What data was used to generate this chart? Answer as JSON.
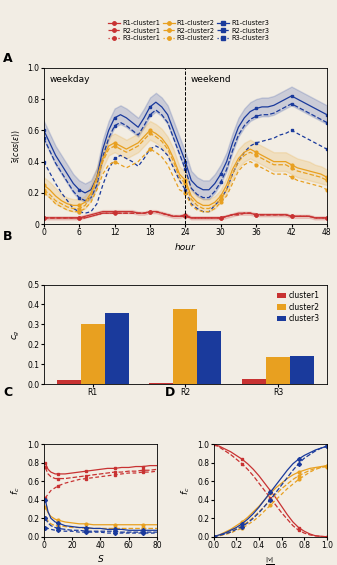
{
  "panel_A": {
    "hours": [
      0,
      1,
      2,
      3,
      4,
      5,
      6,
      7,
      8,
      9,
      10,
      11,
      12,
      13,
      14,
      15,
      16,
      17,
      18,
      19,
      20,
      21,
      22,
      23,
      24,
      25,
      26,
      27,
      28,
      29,
      30,
      31,
      32,
      33,
      34,
      35,
      36,
      37,
      38,
      39,
      40,
      41,
      42,
      43,
      44,
      45,
      46,
      47,
      48
    ],
    "R1_c1": [
      0.04,
      0.04,
      0.04,
      0.04,
      0.04,
      0.04,
      0.04,
      0.05,
      0.06,
      0.07,
      0.08,
      0.08,
      0.08,
      0.08,
      0.08,
      0.08,
      0.07,
      0.07,
      0.08,
      0.08,
      0.07,
      0.06,
      0.05,
      0.05,
      0.06,
      0.04,
      0.04,
      0.04,
      0.04,
      0.04,
      0.04,
      0.05,
      0.06,
      0.07,
      0.07,
      0.07,
      0.06,
      0.06,
      0.06,
      0.06,
      0.06,
      0.06,
      0.05,
      0.05,
      0.05,
      0.05,
      0.04,
      0.04,
      0.04
    ],
    "R1_c1_upper": [
      0.05,
      0.05,
      0.05,
      0.05,
      0.05,
      0.05,
      0.05,
      0.06,
      0.07,
      0.08,
      0.09,
      0.09,
      0.09,
      0.09,
      0.09,
      0.09,
      0.08,
      0.08,
      0.09,
      0.09,
      0.08,
      0.07,
      0.06,
      0.06,
      0.07,
      0.05,
      0.05,
      0.05,
      0.05,
      0.05,
      0.05,
      0.06,
      0.07,
      0.08,
      0.08,
      0.08,
      0.07,
      0.07,
      0.07,
      0.07,
      0.07,
      0.07,
      0.06,
      0.06,
      0.06,
      0.06,
      0.05,
      0.05,
      0.05
    ],
    "R1_c1_lower": [
      0.03,
      0.03,
      0.03,
      0.03,
      0.03,
      0.03,
      0.03,
      0.04,
      0.05,
      0.06,
      0.07,
      0.07,
      0.07,
      0.07,
      0.07,
      0.07,
      0.06,
      0.06,
      0.07,
      0.07,
      0.06,
      0.05,
      0.04,
      0.04,
      0.05,
      0.03,
      0.03,
      0.03,
      0.03,
      0.03,
      0.03,
      0.04,
      0.05,
      0.06,
      0.06,
      0.06,
      0.05,
      0.05,
      0.05,
      0.05,
      0.05,
      0.05,
      0.04,
      0.04,
      0.04,
      0.04,
      0.03,
      0.03,
      0.03
    ],
    "R1_c2": [
      0.25,
      0.22,
      0.18,
      0.15,
      0.13,
      0.12,
      0.12,
      0.14,
      0.2,
      0.3,
      0.42,
      0.5,
      0.52,
      0.5,
      0.48,
      0.5,
      0.52,
      0.56,
      0.6,
      0.58,
      0.55,
      0.5,
      0.42,
      0.32,
      0.28,
      0.18,
      0.14,
      0.12,
      0.12,
      0.14,
      0.18,
      0.25,
      0.35,
      0.42,
      0.46,
      0.48,
      0.46,
      0.44,
      0.42,
      0.4,
      0.4,
      0.4,
      0.38,
      0.36,
      0.35,
      0.34,
      0.33,
      0.32,
      0.3
    ],
    "R1_c2_upper": [
      0.3,
      0.27,
      0.23,
      0.19,
      0.17,
      0.16,
      0.16,
      0.18,
      0.25,
      0.36,
      0.48,
      0.56,
      0.58,
      0.56,
      0.54,
      0.56,
      0.58,
      0.62,
      0.66,
      0.64,
      0.61,
      0.56,
      0.48,
      0.37,
      0.33,
      0.22,
      0.18,
      0.16,
      0.16,
      0.18,
      0.22,
      0.3,
      0.41,
      0.48,
      0.52,
      0.54,
      0.52,
      0.5,
      0.48,
      0.46,
      0.46,
      0.46,
      0.44,
      0.42,
      0.41,
      0.4,
      0.38,
      0.37,
      0.35
    ],
    "R1_c2_lower": [
      0.2,
      0.17,
      0.13,
      0.11,
      0.09,
      0.08,
      0.08,
      0.1,
      0.15,
      0.24,
      0.36,
      0.44,
      0.46,
      0.44,
      0.42,
      0.44,
      0.46,
      0.5,
      0.54,
      0.52,
      0.49,
      0.44,
      0.36,
      0.27,
      0.23,
      0.14,
      0.1,
      0.08,
      0.08,
      0.1,
      0.14,
      0.2,
      0.29,
      0.36,
      0.4,
      0.42,
      0.4,
      0.38,
      0.36,
      0.34,
      0.34,
      0.34,
      0.32,
      0.3,
      0.29,
      0.28,
      0.27,
      0.26,
      0.25
    ],
    "R1_c3": [
      0.6,
      0.52,
      0.44,
      0.38,
      0.32,
      0.26,
      0.22,
      0.2,
      0.22,
      0.3,
      0.48,
      0.6,
      0.68,
      0.7,
      0.68,
      0.65,
      0.62,
      0.68,
      0.75,
      0.78,
      0.75,
      0.7,
      0.6,
      0.5,
      0.4,
      0.28,
      0.24,
      0.22,
      0.22,
      0.26,
      0.32,
      0.4,
      0.52,
      0.62,
      0.68,
      0.72,
      0.74,
      0.75,
      0.75,
      0.76,
      0.78,
      0.8,
      0.82,
      0.8,
      0.78,
      0.76,
      0.74,
      0.72,
      0.7
    ],
    "R1_c3_upper": [
      0.66,
      0.58,
      0.5,
      0.44,
      0.38,
      0.32,
      0.28,
      0.26,
      0.28,
      0.36,
      0.54,
      0.66,
      0.74,
      0.76,
      0.74,
      0.71,
      0.68,
      0.74,
      0.81,
      0.84,
      0.81,
      0.76,
      0.66,
      0.56,
      0.46,
      0.34,
      0.3,
      0.28,
      0.28,
      0.32,
      0.38,
      0.46,
      0.58,
      0.68,
      0.74,
      0.78,
      0.8,
      0.81,
      0.81,
      0.82,
      0.84,
      0.86,
      0.88,
      0.86,
      0.84,
      0.82,
      0.8,
      0.78,
      0.76
    ],
    "R1_c3_lower": [
      0.54,
      0.46,
      0.38,
      0.32,
      0.26,
      0.2,
      0.16,
      0.14,
      0.16,
      0.24,
      0.42,
      0.54,
      0.62,
      0.64,
      0.62,
      0.59,
      0.56,
      0.62,
      0.69,
      0.72,
      0.69,
      0.64,
      0.54,
      0.44,
      0.34,
      0.22,
      0.18,
      0.16,
      0.16,
      0.2,
      0.26,
      0.34,
      0.46,
      0.56,
      0.62,
      0.66,
      0.68,
      0.69,
      0.69,
      0.7,
      0.72,
      0.74,
      0.76,
      0.74,
      0.72,
      0.7,
      0.68,
      0.66,
      0.64
    ],
    "R2_c1": [
      0.04,
      0.04,
      0.04,
      0.04,
      0.04,
      0.04,
      0.04,
      0.04,
      0.05,
      0.06,
      0.07,
      0.07,
      0.07,
      0.07,
      0.07,
      0.07,
      0.07,
      0.07,
      0.08,
      0.08,
      0.07,
      0.06,
      0.05,
      0.05,
      0.05,
      0.04,
      0.04,
      0.04,
      0.04,
      0.04,
      0.04,
      0.05,
      0.06,
      0.06,
      0.07,
      0.07,
      0.06,
      0.06,
      0.06,
      0.06,
      0.06,
      0.06,
      0.05,
      0.05,
      0.05,
      0.05,
      0.04,
      0.04,
      0.04
    ],
    "R2_c2": [
      0.22,
      0.19,
      0.15,
      0.13,
      0.11,
      0.1,
      0.1,
      0.12,
      0.18,
      0.28,
      0.4,
      0.48,
      0.5,
      0.48,
      0.46,
      0.48,
      0.5,
      0.54,
      0.58,
      0.56,
      0.53,
      0.48,
      0.4,
      0.3,
      0.26,
      0.16,
      0.12,
      0.1,
      0.1,
      0.12,
      0.16,
      0.22,
      0.32,
      0.4,
      0.44,
      0.46,
      0.44,
      0.42,
      0.4,
      0.38,
      0.38,
      0.38,
      0.36,
      0.34,
      0.33,
      0.32,
      0.31,
      0.3,
      0.28
    ],
    "R2_c3": [
      0.55,
      0.47,
      0.39,
      0.33,
      0.27,
      0.21,
      0.17,
      0.15,
      0.17,
      0.25,
      0.43,
      0.55,
      0.63,
      0.65,
      0.63,
      0.6,
      0.57,
      0.63,
      0.7,
      0.73,
      0.7,
      0.65,
      0.55,
      0.45,
      0.35,
      0.23,
      0.19,
      0.17,
      0.17,
      0.21,
      0.27,
      0.35,
      0.47,
      0.57,
      0.63,
      0.67,
      0.69,
      0.7,
      0.7,
      0.71,
      0.73,
      0.75,
      0.77,
      0.75,
      0.73,
      0.71,
      0.69,
      0.67,
      0.65
    ],
    "R3_c1": [
      0.04,
      0.04,
      0.04,
      0.04,
      0.04,
      0.04,
      0.04,
      0.04,
      0.05,
      0.06,
      0.07,
      0.07,
      0.07,
      0.07,
      0.07,
      0.07,
      0.07,
      0.07,
      0.08,
      0.08,
      0.07,
      0.06,
      0.05,
      0.05,
      0.05,
      0.04,
      0.04,
      0.04,
      0.04,
      0.04,
      0.04,
      0.05,
      0.06,
      0.06,
      0.07,
      0.07,
      0.06,
      0.06,
      0.06,
      0.06,
      0.06,
      0.06,
      0.05,
      0.05,
      0.05,
      0.05,
      0.04,
      0.04,
      0.04
    ],
    "R3_c2": [
      0.2,
      0.17,
      0.13,
      0.11,
      0.09,
      0.08,
      0.08,
      0.1,
      0.14,
      0.22,
      0.32,
      0.38,
      0.4,
      0.38,
      0.36,
      0.38,
      0.4,
      0.44,
      0.48,
      0.46,
      0.43,
      0.38,
      0.3,
      0.22,
      0.2,
      0.12,
      0.09,
      0.08,
      0.08,
      0.1,
      0.14,
      0.18,
      0.26,
      0.34,
      0.38,
      0.4,
      0.38,
      0.36,
      0.34,
      0.32,
      0.32,
      0.32,
      0.3,
      0.28,
      0.27,
      0.26,
      0.25,
      0.24,
      0.22
    ],
    "R3_c3": [
      0.4,
      0.33,
      0.26,
      0.2,
      0.15,
      0.1,
      0.08,
      0.07,
      0.08,
      0.13,
      0.25,
      0.35,
      0.42,
      0.44,
      0.42,
      0.4,
      0.37,
      0.42,
      0.48,
      0.5,
      0.48,
      0.44,
      0.36,
      0.28,
      0.22,
      0.13,
      0.1,
      0.08,
      0.08,
      0.12,
      0.16,
      0.22,
      0.32,
      0.4,
      0.46,
      0.5,
      0.52,
      0.53,
      0.54,
      0.55,
      0.57,
      0.58,
      0.6,
      0.58,
      0.56,
      0.54,
      0.52,
      0.5,
      0.48
    ],
    "ylabel": "$\\bar{s}(cos(\\epsilon))$",
    "xlabel": "hour"
  },
  "panel_B": {
    "regions": [
      "R1",
      "R2",
      "R3"
    ],
    "cluster1_vals": [
      0.022,
      0.005,
      0.025
    ],
    "cluster2_vals": [
      0.3,
      0.375,
      0.135
    ],
    "cluster3_vals": [
      0.355,
      0.265,
      0.14
    ],
    "ylabel": "$c_g$",
    "ylim": [
      0,
      0.5
    ]
  },
  "panel_C": {
    "S": [
      1,
      3,
      5,
      8,
      10,
      15,
      20,
      25,
      30,
      35,
      40,
      45,
      50,
      55,
      60,
      65,
      70,
      75,
      80
    ],
    "red1": [
      0.8,
      0.73,
      0.7,
      0.68,
      0.68,
      0.68,
      0.69,
      0.7,
      0.71,
      0.72,
      0.73,
      0.74,
      0.74,
      0.75,
      0.75,
      0.76,
      0.76,
      0.77,
      0.77
    ],
    "red2": [
      0.75,
      0.68,
      0.65,
      0.63,
      0.63,
      0.63,
      0.64,
      0.65,
      0.66,
      0.67,
      0.68,
      0.69,
      0.7,
      0.7,
      0.71,
      0.71,
      0.72,
      0.72,
      0.73
    ],
    "red3": [
      0.42,
      0.46,
      0.5,
      0.53,
      0.55,
      0.58,
      0.6,
      0.62,
      0.63,
      0.64,
      0.65,
      0.66,
      0.67,
      0.68,
      0.69,
      0.69,
      0.7,
      0.7,
      0.71
    ],
    "yellow1": [
      0.32,
      0.26,
      0.22,
      0.19,
      0.18,
      0.16,
      0.15,
      0.14,
      0.14,
      0.13,
      0.13,
      0.13,
      0.13,
      0.13,
      0.13,
      0.13,
      0.13,
      0.13,
      0.13
    ],
    "yellow2": [
      0.2,
      0.17,
      0.14,
      0.12,
      0.12,
      0.11,
      0.1,
      0.1,
      0.09,
      0.09,
      0.09,
      0.09,
      0.09,
      0.09,
      0.09,
      0.09,
      0.09,
      0.09,
      0.09
    ],
    "blue1": [
      0.4,
      0.27,
      0.2,
      0.16,
      0.15,
      0.12,
      0.11,
      0.1,
      0.1,
      0.09,
      0.09,
      0.08,
      0.08,
      0.08,
      0.07,
      0.07,
      0.07,
      0.07,
      0.07
    ],
    "blue2": [
      0.2,
      0.15,
      0.12,
      0.1,
      0.09,
      0.08,
      0.07,
      0.07,
      0.06,
      0.06,
      0.06,
      0.06,
      0.06,
      0.05,
      0.05,
      0.05,
      0.05,
      0.05,
      0.05
    ],
    "blue3": [
      0.1,
      0.09,
      0.08,
      0.07,
      0.07,
      0.06,
      0.06,
      0.05,
      0.05,
      0.05,
      0.05,
      0.04,
      0.04,
      0.04,
      0.04,
      0.04,
      0.04,
      0.04,
      0.04
    ],
    "xlabel": "S",
    "ylabel": "$f_c$",
    "ylim": [
      0,
      1.0
    ]
  },
  "panel_D": {
    "v": [
      0.0,
      0.05,
      0.1,
      0.15,
      0.2,
      0.25,
      0.3,
      0.35,
      0.4,
      0.45,
      0.5,
      0.55,
      0.6,
      0.65,
      0.7,
      0.75,
      0.8,
      0.85,
      0.9,
      0.95,
      1.0
    ],
    "red1": [
      1.0,
      0.98,
      0.95,
      0.92,
      0.88,
      0.84,
      0.79,
      0.73,
      0.66,
      0.58,
      0.5,
      0.42,
      0.33,
      0.24,
      0.16,
      0.1,
      0.06,
      0.03,
      0.01,
      0.005,
      0.0
    ],
    "red2": [
      1.0,
      0.97,
      0.93,
      0.89,
      0.84,
      0.79,
      0.73,
      0.66,
      0.58,
      0.5,
      0.42,
      0.34,
      0.26,
      0.19,
      0.12,
      0.07,
      0.04,
      0.02,
      0.01,
      0.003,
      0.0
    ],
    "yellow1": [
      0.0,
      0.02,
      0.05,
      0.08,
      0.12,
      0.16,
      0.21,
      0.27,
      0.33,
      0.4,
      0.47,
      0.53,
      0.58,
      0.63,
      0.67,
      0.7,
      0.72,
      0.74,
      0.75,
      0.76,
      0.77
    ],
    "yellow2": [
      0.0,
      0.015,
      0.035,
      0.06,
      0.09,
      0.12,
      0.16,
      0.21,
      0.27,
      0.33,
      0.4,
      0.46,
      0.52,
      0.57,
      0.62,
      0.66,
      0.69,
      0.72,
      0.74,
      0.75,
      0.76
    ],
    "yellow3": [
      0.0,
      0.01,
      0.025,
      0.04,
      0.07,
      0.09,
      0.13,
      0.17,
      0.22,
      0.28,
      0.34,
      0.4,
      0.46,
      0.52,
      0.57,
      0.62,
      0.66,
      0.7,
      0.73,
      0.75,
      0.77
    ],
    "blue1": [
      0.0,
      0.02,
      0.04,
      0.07,
      0.1,
      0.14,
      0.19,
      0.25,
      0.32,
      0.4,
      0.48,
      0.56,
      0.64,
      0.72,
      0.79,
      0.84,
      0.88,
      0.91,
      0.94,
      0.96,
      0.98
    ],
    "blue2": [
      0.0,
      0.015,
      0.03,
      0.05,
      0.08,
      0.11,
      0.15,
      0.2,
      0.26,
      0.33,
      0.4,
      0.48,
      0.56,
      0.64,
      0.72,
      0.79,
      0.85,
      0.89,
      0.93,
      0.96,
      0.98
    ],
    "xlabel": "$\\frac{|v|}{|v|}$",
    "ylabel": "$f_c$",
    "ylim": [
      0,
      1.0
    ],
    "xlim": [
      0,
      1.0
    ]
  },
  "colors": {
    "red": "#c83232",
    "yellow": "#e8a020",
    "blue": "#1a3a9c"
  },
  "background": "#f2ede4"
}
